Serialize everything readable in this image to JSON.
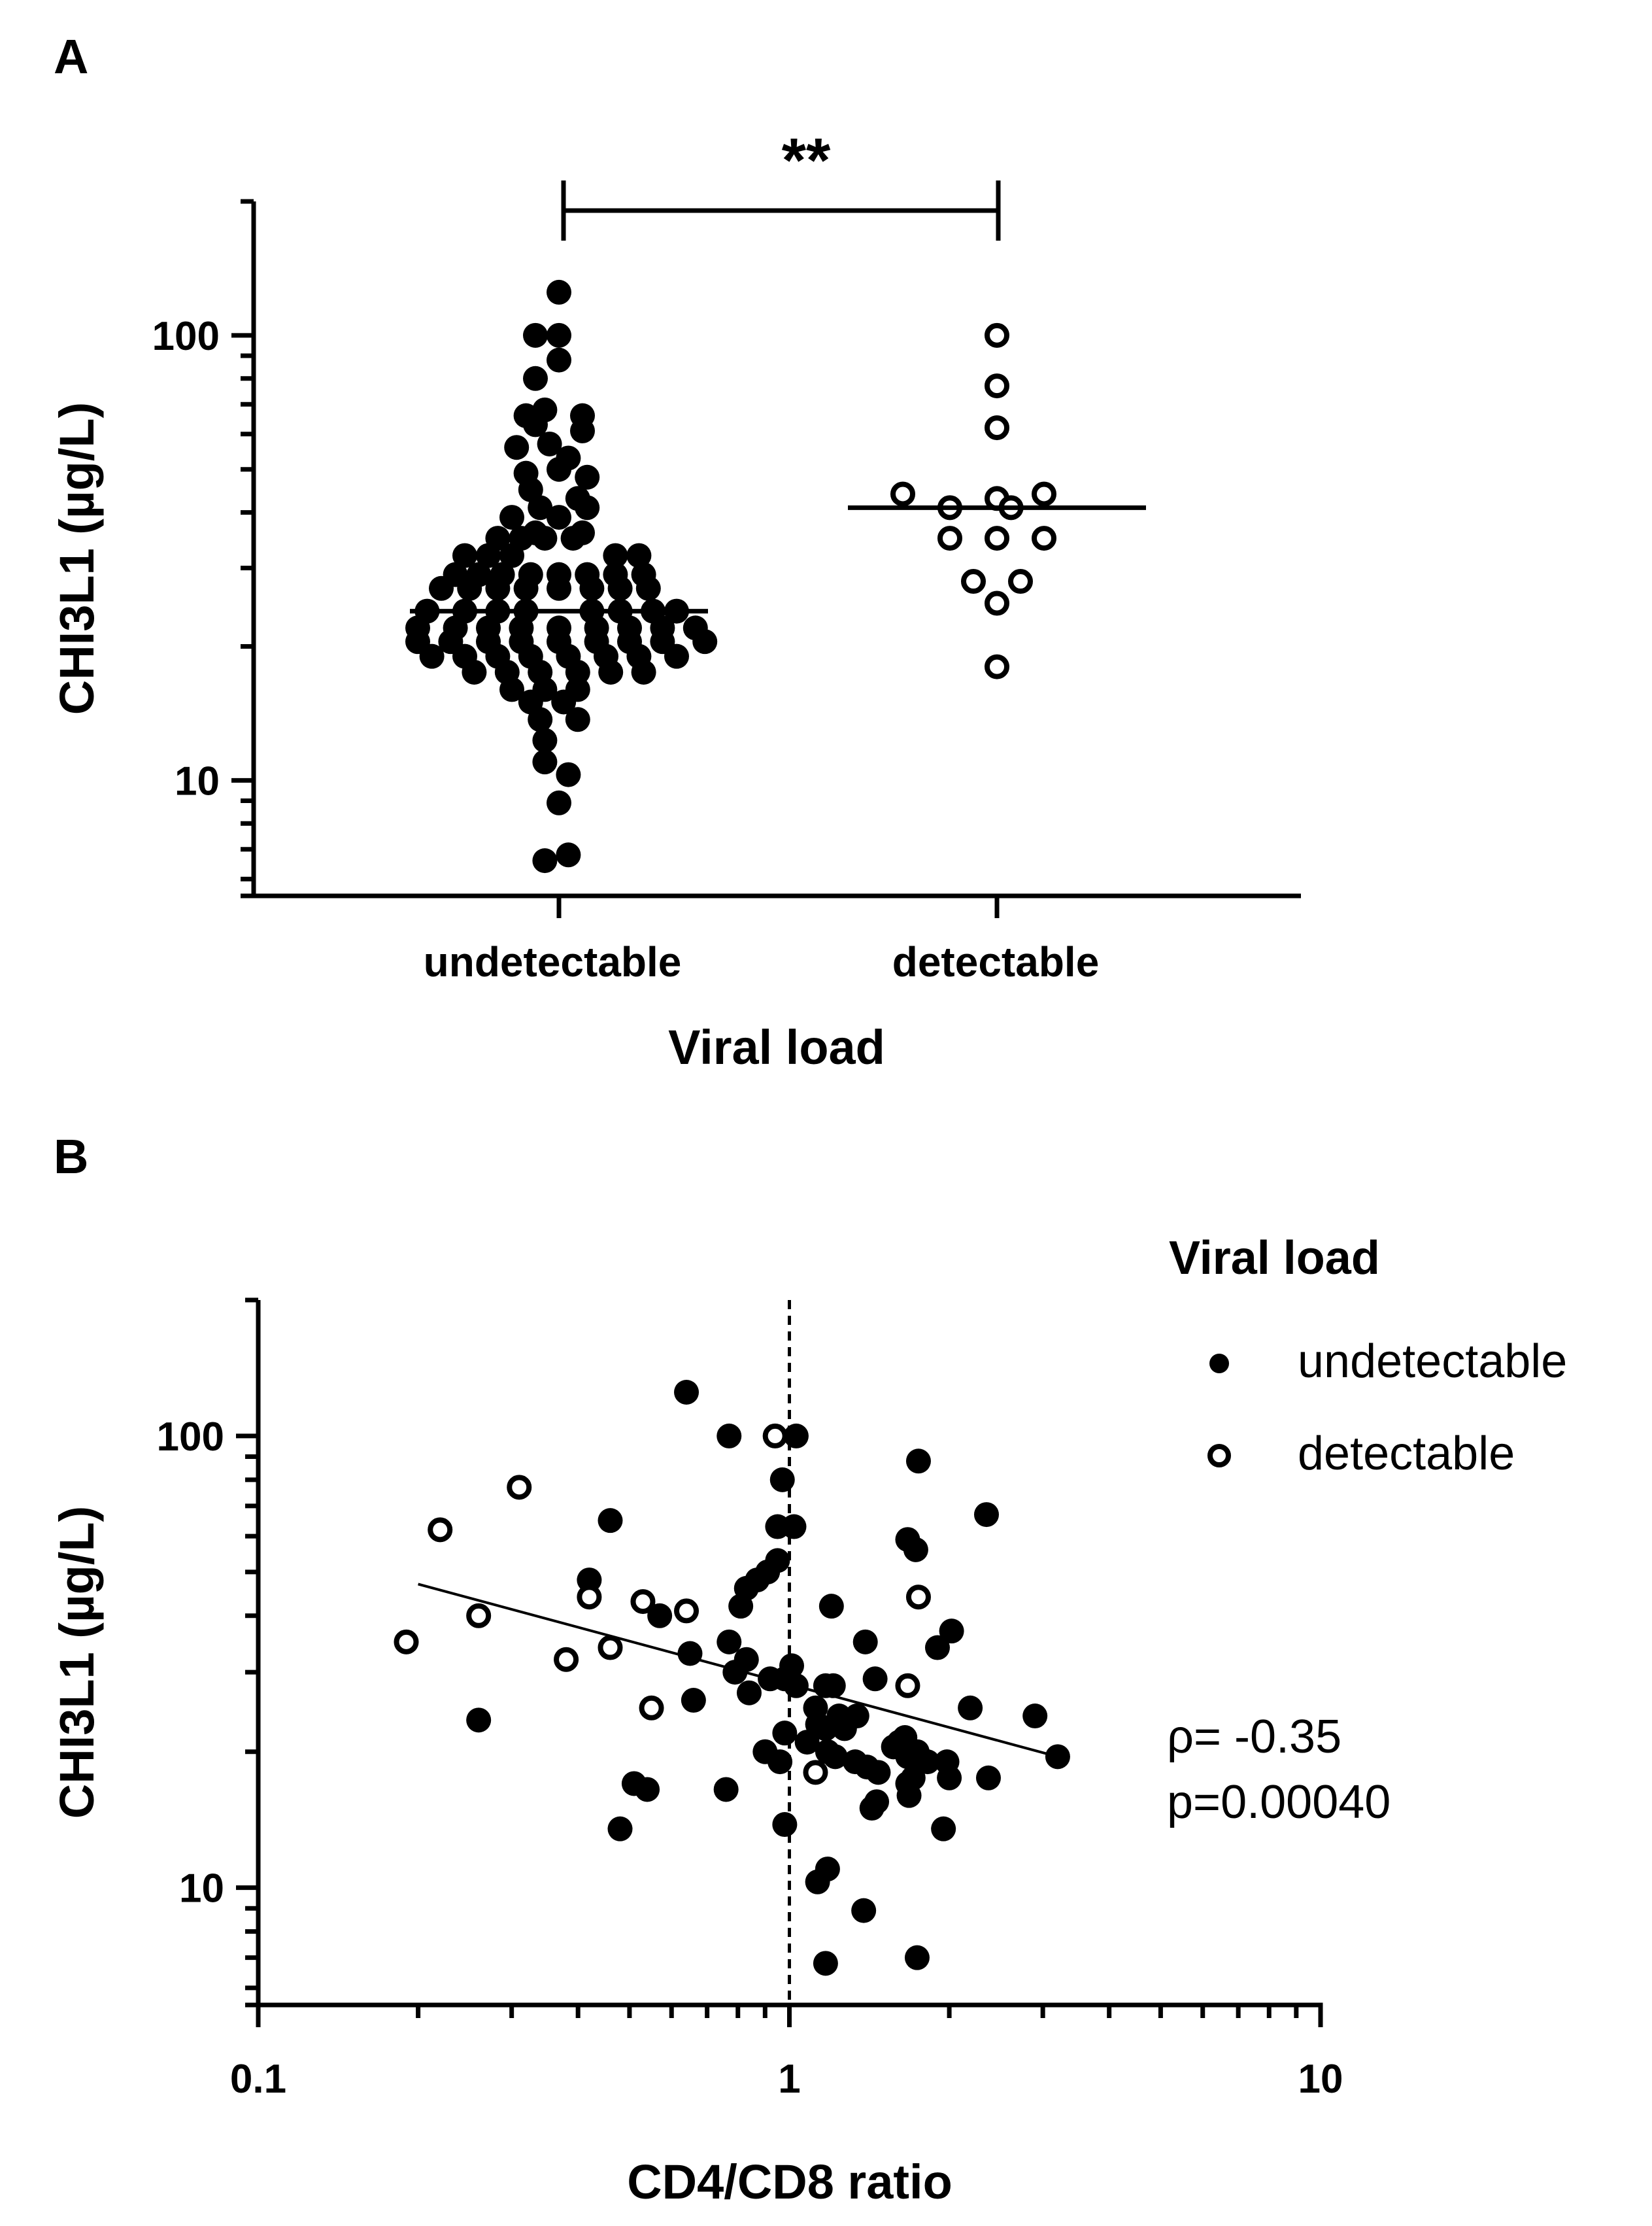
{
  "chart_data": [
    {
      "panel": "A",
      "type": "scatter",
      "subtype": "dot-plot",
      "xlabel": "Viral load",
      "ylabel": "CHI3L1 (µg/L)",
      "yscale": "log",
      "ylim": [
        5.5,
        200
      ],
      "yticks": [
        {
          "value": 10,
          "label": "10"
        },
        {
          "value": 100,
          "label": "100"
        }
      ],
      "categories": [
        "undetectable",
        "detectable"
      ],
      "significance": "**",
      "groups": [
        {
          "name": "undetectable",
          "marker": "filled",
          "median": 24,
          "points": [
            {
              "x": 0,
              "y": 125
            },
            {
              "x": -0.05,
              "y": 100
            },
            {
              "x": 0,
              "y": 100
            },
            {
              "x": 0,
              "y": 88
            },
            {
              "x": -0.05,
              "y": 80
            },
            {
              "x": -0.07,
              "y": 66
            },
            {
              "x": -0.03,
              "y": 68
            },
            {
              "x": 0.05,
              "y": 66
            },
            {
              "x": -0.05,
              "y": 63
            },
            {
              "x": 0.05,
              "y": 61
            },
            {
              "x": -0.09,
              "y": 56
            },
            {
              "x": -0.02,
              "y": 57
            },
            {
              "x": 0.02,
              "y": 53
            },
            {
              "x": -0.07,
              "y": 49
            },
            {
              "x": 0,
              "y": 50
            },
            {
              "x": 0.06,
              "y": 48
            },
            {
              "x": -0.06,
              "y": 45
            },
            {
              "x": 0.04,
              "y": 43
            },
            {
              "x": -0.04,
              "y": 41
            },
            {
              "x": 0.06,
              "y": 41
            },
            {
              "x": -0.1,
              "y": 39
            },
            {
              "x": 0,
              "y": 39
            },
            {
              "x": -0.05,
              "y": 36
            },
            {
              "x": 0.05,
              "y": 36
            },
            {
              "x": -0.13,
              "y": 35
            },
            {
              "x": -0.08,
              "y": 35
            },
            {
              "x": -0.03,
              "y": 35
            },
            {
              "x": 0.03,
              "y": 35
            },
            {
              "x": -0.2,
              "y": 32
            },
            {
              "x": -0.15,
              "y": 32
            },
            {
              "x": -0.1,
              "y": 32
            },
            {
              "x": 0.12,
              "y": 32
            },
            {
              "x": 0.17,
              "y": 32
            },
            {
              "x": -0.22,
              "y": 29
            },
            {
              "x": -0.17,
              "y": 29
            },
            {
              "x": -0.12,
              "y": 29
            },
            {
              "x": -0.06,
              "y": 29
            },
            {
              "x": 0,
              "y": 29
            },
            {
              "x": 0.06,
              "y": 29
            },
            {
              "x": 0.12,
              "y": 29
            },
            {
              "x": 0.18,
              "y": 29
            },
            {
              "x": -0.25,
              "y": 27
            },
            {
              "x": -0.19,
              "y": 27
            },
            {
              "x": -0.13,
              "y": 27
            },
            {
              "x": -0.07,
              "y": 27
            },
            {
              "x": 0,
              "y": 27
            },
            {
              "x": 0.07,
              "y": 27
            },
            {
              "x": 0.13,
              "y": 27
            },
            {
              "x": 0.19,
              "y": 27
            },
            {
              "x": -0.28,
              "y": 24
            },
            {
              "x": -0.2,
              "y": 24
            },
            {
              "x": -0.13,
              "y": 24
            },
            {
              "x": -0.07,
              "y": 24
            },
            {
              "x": 0.07,
              "y": 24
            },
            {
              "x": 0.13,
              "y": 24
            },
            {
              "x": 0.2,
              "y": 24
            },
            {
              "x": 0.25,
              "y": 24
            },
            {
              "x": -0.3,
              "y": 22
            },
            {
              "x": -0.22,
              "y": 22
            },
            {
              "x": -0.15,
              "y": 22
            },
            {
              "x": -0.08,
              "y": 22
            },
            {
              "x": 0,
              "y": 22
            },
            {
              "x": 0.08,
              "y": 22
            },
            {
              "x": 0.15,
              "y": 22
            },
            {
              "x": 0.22,
              "y": 22
            },
            {
              "x": 0.29,
              "y": 22
            },
            {
              "x": -0.3,
              "y": 20.5
            },
            {
              "x": -0.23,
              "y": 20.5
            },
            {
              "x": -0.15,
              "y": 20.5
            },
            {
              "x": -0.08,
              "y": 20.5
            },
            {
              "x": 0,
              "y": 20.5
            },
            {
              "x": 0.08,
              "y": 20.5
            },
            {
              "x": 0.15,
              "y": 20.5
            },
            {
              "x": 0.22,
              "y": 20.5
            },
            {
              "x": 0.31,
              "y": 20.5
            },
            {
              "x": -0.27,
              "y": 19
            },
            {
              "x": -0.2,
              "y": 19
            },
            {
              "x": -0.13,
              "y": 19
            },
            {
              "x": -0.06,
              "y": 19
            },
            {
              "x": 0.02,
              "y": 19
            },
            {
              "x": 0.1,
              "y": 19
            },
            {
              "x": 0.17,
              "y": 19
            },
            {
              "x": 0.25,
              "y": 19
            },
            {
              "x": -0.18,
              "y": 17.5
            },
            {
              "x": -0.11,
              "y": 17.5
            },
            {
              "x": -0.04,
              "y": 17.5
            },
            {
              "x": 0.04,
              "y": 17.5
            },
            {
              "x": 0.11,
              "y": 17.5
            },
            {
              "x": 0.18,
              "y": 17.5
            },
            {
              "x": -0.1,
              "y": 16
            },
            {
              "x": -0.03,
              "y": 16
            },
            {
              "x": 0.04,
              "y": 16
            },
            {
              "x": -0.06,
              "y": 15
            },
            {
              "x": 0.01,
              "y": 15
            },
            {
              "x": -0.04,
              "y": 13.7
            },
            {
              "x": 0.04,
              "y": 13.7
            },
            {
              "x": -0.03,
              "y": 12.3
            },
            {
              "x": -0.03,
              "y": 11
            },
            {
              "x": 0.02,
              "y": 10.3
            },
            {
              "x": 0,
              "y": 8.9
            },
            {
              "x": -0.03,
              "y": 6.6
            },
            {
              "x": 0.02,
              "y": 6.8
            }
          ]
        },
        {
          "name": "detectable",
          "marker": "open",
          "median": 41,
          "points": [
            {
              "x": 0,
              "y": 100
            },
            {
              "x": 0,
              "y": 77
            },
            {
              "x": 0,
              "y": 62
            },
            {
              "x": -0.2,
              "y": 44
            },
            {
              "x": 0,
              "y": 43
            },
            {
              "x": 0.1,
              "y": 44
            },
            {
              "x": -0.1,
              "y": 41
            },
            {
              "x": 0.03,
              "y": 41
            },
            {
              "x": -0.1,
              "y": 35
            },
            {
              "x": 0,
              "y": 35
            },
            {
              "x": 0.1,
              "y": 35
            },
            {
              "x": -0.05,
              "y": 28
            },
            {
              "x": 0.05,
              "y": 28
            },
            {
              "x": 0,
              "y": 25
            },
            {
              "x": 0,
              "y": 18
            }
          ]
        }
      ]
    },
    {
      "panel": "B",
      "type": "scatter",
      "xlabel": "CD4/CD8 ratio",
      "ylabel": "CHI3L1 (µg/L)",
      "xscale": "log",
      "yscale": "log",
      "xlim": [
        0.1,
        10
      ],
      "ylim": [
        5.5,
        200
      ],
      "xticks": [
        {
          "value": 0.1,
          "label": "0.1"
        },
        {
          "value": 1,
          "label": "1"
        },
        {
          "value": 10,
          "label": "10"
        }
      ],
      "yticks": [
        {
          "value": 10,
          "label": "10"
        },
        {
          "value": 100,
          "label": "100"
        }
      ],
      "reference_line_x": 1,
      "trendline": {
        "x": [
          0.2,
          3.2
        ],
        "y": [
          47,
          19.5
        ]
      },
      "legend": {
        "title": "Viral load",
        "position": "top-right",
        "entries": [
          "undetectable",
          "detectable"
        ]
      },
      "annotations": [
        "ρ= -0.35",
        "p=0.00040"
      ],
      "series": [
        {
          "name": "undetectable",
          "marker": "filled",
          "points": [
            [
              0.64,
              125
            ],
            [
              0.77,
              100
            ],
            [
              1.03,
              100
            ],
            [
              1.75,
              88
            ],
            [
              0.97,
              80
            ],
            [
              2.35,
              67
            ],
            [
              0.46,
              65
            ],
            [
              0.95,
              63
            ],
            [
              1.02,
              63
            ],
            [
              1.67,
              59
            ],
            [
              1.73,
              56
            ],
            [
              0.95,
              53
            ],
            [
              0.91,
              50
            ],
            [
              0.87,
              48
            ],
            [
              0.42,
              48
            ],
            [
              0.83,
              46
            ],
            [
              1.2,
              42
            ],
            [
              0.81,
              42
            ],
            [
              0.57,
              40
            ],
            [
              2.02,
              37
            ],
            [
              1.39,
              35
            ],
            [
              1.9,
              34
            ],
            [
              0.77,
              35
            ],
            [
              0.65,
              33
            ],
            [
              0.83,
              32
            ],
            [
              1.01,
              31
            ],
            [
              0.79,
              30
            ],
            [
              1.45,
              29
            ],
            [
              0.92,
              29
            ],
            [
              0.98,
              29
            ],
            [
              1.03,
              28
            ],
            [
              1.17,
              28
            ],
            [
              1.21,
              28
            ],
            [
              0.84,
              27
            ],
            [
              0.66,
              26
            ],
            [
              2.19,
              25
            ],
            [
              1.12,
              25
            ],
            [
              1.24,
              24
            ],
            [
              2.9,
              24
            ],
            [
              1.34,
              24
            ],
            [
              0.26,
              23.5
            ],
            [
              1.13,
              23
            ],
            [
              1.17,
              22.5
            ],
            [
              1.27,
              22.5
            ],
            [
              0.98,
              22
            ],
            [
              1.08,
              21
            ],
            [
              1.65,
              21.5
            ],
            [
              1.61,
              21
            ],
            [
              1.18,
              20
            ],
            [
              1.57,
              20.5
            ],
            [
              1.74,
              20
            ],
            [
              1.22,
              19.5
            ],
            [
              1.33,
              19
            ],
            [
              1.67,
              19.5
            ],
            [
              1.82,
              19
            ],
            [
              1.98,
              19
            ],
            [
              3.2,
              19.5
            ],
            [
              0.9,
              20
            ],
            [
              0.96,
              19
            ],
            [
              1.4,
              18.5
            ],
            [
              1.47,
              18
            ],
            [
              1.71,
              17.5
            ],
            [
              2.0,
              17.5
            ],
            [
              2.37,
              17.5
            ],
            [
              1.67,
              17
            ],
            [
              0.76,
              16.5
            ],
            [
              0.51,
              17
            ],
            [
              0.54,
              16.5
            ],
            [
              1.68,
              16
            ],
            [
              1.46,
              15.5
            ],
            [
              1.43,
              15
            ],
            [
              0.48,
              13.5
            ],
            [
              0.98,
              13.8
            ],
            [
              1.95,
              13.5
            ],
            [
              1.18,
              11
            ],
            [
              1.13,
              10.3
            ],
            [
              1.38,
              8.9
            ],
            [
              1.17,
              6.8
            ],
            [
              1.74,
              7
            ]
          ]
        },
        {
          "name": "detectable",
          "marker": "open",
          "points": [
            [
              0.94,
              100
            ],
            [
              0.31,
              77
            ],
            [
              0.22,
              62
            ],
            [
              0.42,
              44
            ],
            [
              1.75,
              44
            ],
            [
              0.53,
              43
            ],
            [
              0.64,
              41
            ],
            [
              0.26,
              40
            ],
            [
              0.19,
              35
            ],
            [
              0.46,
              34
            ],
            [
              0.38,
              32
            ],
            [
              1.67,
              28
            ],
            [
              0.55,
              25
            ],
            [
              1.12,
              18
            ]
          ]
        }
      ]
    }
  ],
  "labels": {
    "panel_a": "A",
    "panel_b": "B"
  }
}
